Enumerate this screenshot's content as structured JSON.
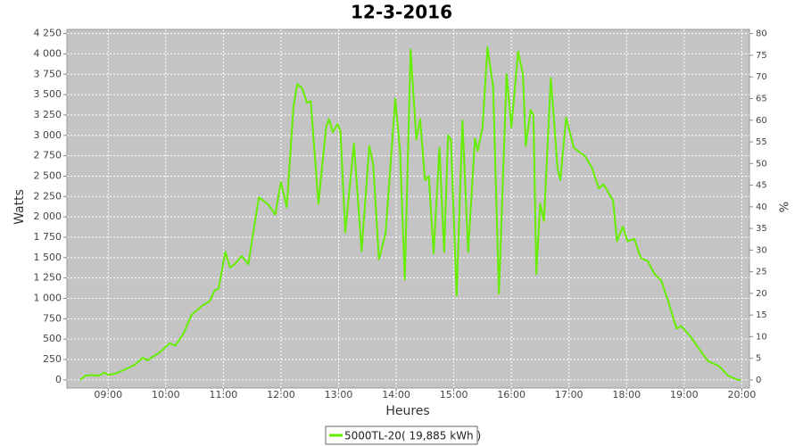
{
  "chart_data": {
    "type": "line",
    "title": "12-3-2016",
    "x_label": "Heures",
    "y_label": "Watts",
    "y2_label": "%",
    "xlim": [
      "08:17",
      "20:08"
    ],
    "xticks": [
      "09:00",
      "10:00",
      "11:00",
      "12:00",
      "13:00",
      "14:00",
      "15:00",
      "16:00",
      "17:00",
      "18:00",
      "19:00",
      "20:00"
    ],
    "ylim": [
      -100,
      4300
    ],
    "yticks": [
      0,
      250,
      500,
      750,
      {
        "value": 1000,
        "label": "1 000"
      },
      {
        "value": 1250,
        "label": "1 250"
      },
      {
        "value": 1500,
        "label": "1 500"
      },
      {
        "value": 1750,
        "label": "1 750"
      },
      {
        "value": 2000,
        "label": "2 000"
      },
      {
        "value": 2250,
        "label": "2 250"
      },
      {
        "value": 2500,
        "label": "2 500"
      },
      {
        "value": 2750,
        "label": "2 750"
      },
      {
        "value": 3000,
        "label": "3 000"
      },
      {
        "value": 3250,
        "label": "3 250"
      },
      {
        "value": 3500,
        "label": "3 500"
      },
      {
        "value": 3750,
        "label": "3 750"
      },
      {
        "value": 4000,
        "label": "4 000"
      },
      {
        "value": 4250,
        "label": "4 250"
      }
    ],
    "y2lim": [
      -1.86,
      80.97
    ],
    "y2ticks": [
      0,
      5,
      10,
      15,
      20,
      25,
      30,
      35,
      40,
      45,
      50,
      55,
      60,
      65,
      70,
      75,
      80
    ],
    "grid": true,
    "legend": "bottom",
    "x": [
      "08:31",
      "08:36",
      "08:43",
      "08:50",
      "08:56",
      "09:00",
      "09:08",
      "09:18",
      "09:27",
      "09:36",
      "09:41",
      "09:55",
      "10:04",
      "10:10",
      "10:18",
      "10:27",
      "10:37",
      "10:46",
      "10:51",
      "10:55",
      "11:02",
      "11:07",
      "11:12",
      "11:19",
      "11:26",
      "11:31",
      "11:37",
      "11:47",
      "11:54",
      "12:00",
      "12:06",
      "12:13",
      "12:17",
      "12:22",
      "12:27",
      "12:31",
      "12:39",
      "12:47",
      "12:50",
      "12:54",
      "12:59",
      "13:02",
      "13:07",
      "13:16",
      "13:24",
      "13:32",
      "13:36",
      "13:42",
      "13:49",
      "13:59",
      "14:04",
      "14:09",
      "14:15",
      "14:21",
      "14:25",
      "14:30",
      "14:34",
      "14:39",
      "14:45",
      "14:50",
      "14:54",
      "14:57",
      "15:03",
      "15:09",
      "15:15",
      "15:22",
      "15:25",
      "15:30",
      "15:35",
      "15:41",
      "15:47",
      "15:55",
      "16:00",
      "16:07",
      "16:12",
      "16:15",
      "16:20",
      "16:23",
      "16:26",
      "16:30",
      "16:34",
      "16:41",
      "16:44",
      "16:48",
      "16:51",
      "16:57",
      "17:05",
      "17:17",
      "17:24",
      "17:31",
      "17:36",
      "17:41",
      "17:46",
      "17:50",
      "17:56",
      "18:01",
      "18:08",
      "18:15",
      "18:22",
      "18:29",
      "18:36",
      "18:43",
      "18:52",
      "18:57",
      "19:06",
      "19:18",
      "19:25",
      "19:36",
      "19:46",
      "19:50",
      "19:56",
      "19:59"
    ],
    "series": [
      {
        "name": "5000TL-20( 19,885 kWh )",
        "color": "#66ee00",
        "values": [
          0,
          50,
          60,
          50,
          90,
          60,
          80,
          130,
          180,
          270,
          240,
          350,
          450,
          420,
          560,
          800,
          900,
          970,
          1100,
          1120,
          1570,
          1380,
          1420,
          1520,
          1420,
          1800,
          2240,
          2150,
          2030,
          2430,
          2120,
          3350,
          3630,
          3580,
          3400,
          3420,
          2160,
          3100,
          3200,
          3040,
          3140,
          3050,
          1810,
          2900,
          1580,
          2870,
          2650,
          1480,
          1800,
          3450,
          2800,
          1230,
          4050,
          2950,
          3200,
          2450,
          2500,
          1550,
          2850,
          1570,
          3000,
          2950,
          1030,
          3180,
          1570,
          2960,
          2810,
          3100,
          4080,
          3600,
          1060,
          3750,
          3100,
          4030,
          3750,
          2870,
          3310,
          3250,
          1300,
          2160,
          1950,
          3700,
          3250,
          2600,
          2450,
          3220,
          2850,
          2740,
          2600,
          2350,
          2400,
          2300,
          2200,
          1700,
          1880,
          1700,
          1730,
          1490,
          1460,
          1300,
          1220,
          980,
          630,
          660,
          540,
          340,
          230,
          170,
          50,
          30,
          0,
          0
        ]
      }
    ]
  }
}
